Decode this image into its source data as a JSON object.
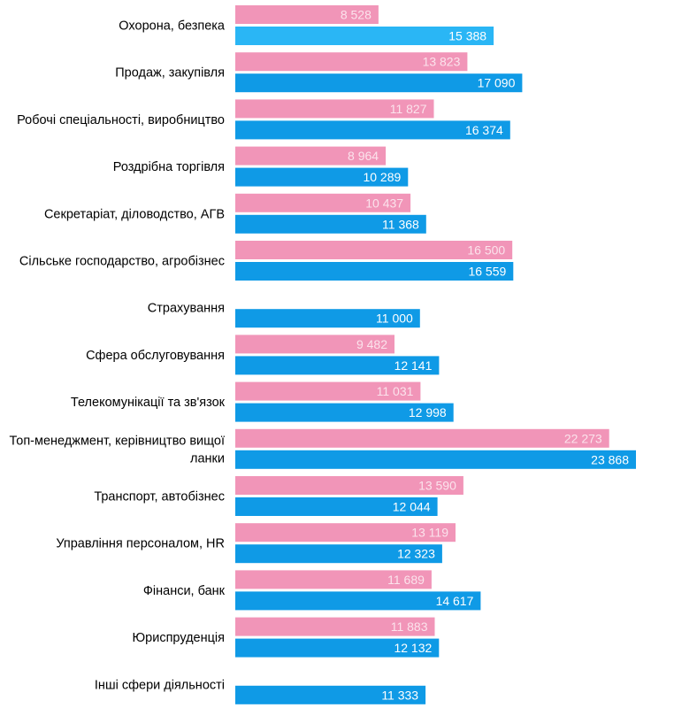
{
  "chart_data": {
    "type": "bar",
    "orientation": "horizontal",
    "categories": [
      [
        "Охорона, безпека"
      ],
      [
        "Продаж, закупівля"
      ],
      [
        "Робочі спеціальності, виробництво"
      ],
      [
        "Роздрібна торгівля"
      ],
      [
        "Секретаріат, діловодство, АГВ"
      ],
      [
        "Сільське господарство, агробізнес"
      ],
      [
        "Страхування"
      ],
      [
        "Сфера обслуговування"
      ],
      [
        "Телекомунікації та зв'язок"
      ],
      [
        "Топ-менеджмент, керівництво вищої",
        "ланки"
      ],
      [
        "Транспорт, автобізнес"
      ],
      [
        "Управління персоналом, HR"
      ],
      [
        "Фінанси, банк"
      ],
      [
        "Юриспруденція"
      ],
      [
        "Інші сфери діяльності"
      ]
    ],
    "series": [
      {
        "values": [
          8528,
          13823,
          11827,
          8964,
          10437,
          16500,
          null,
          9482,
          11031,
          22273,
          13590,
          13119,
          11689,
          11883,
          null
        ],
        "labels": [
          "8 528",
          "13 823",
          "11 827",
          "8 964",
          "10 437",
          "16 500",
          "",
          "9 482",
          "11 031",
          "22 273",
          "13 590",
          "13 119",
          "11 689",
          "11 883",
          ""
        ]
      },
      {
        "values": [
          15388,
          17090,
          16374,
          10289,
          11368,
          16559,
          11000,
          12141,
          12998,
          23868,
          12044,
          12323,
          14617,
          12132,
          11333
        ],
        "labels": [
          "15 388",
          "17 090",
          "16 374",
          "10 289",
          "11 368",
          "16 559",
          "11 000",
          "12 141",
          "12 998",
          "23 868",
          "12 044",
          "12 323",
          "14 617",
          "12 132",
          "11 333"
        ]
      }
    ],
    "colors": {
      "series1": "#f195b8",
      "series2": "#0f9ae6",
      "series2_first": "#2ab6f5",
      "label_light": "#fbe3ec",
      "label_white": "#ffffff"
    },
    "grid": false,
    "legend": "none"
  }
}
